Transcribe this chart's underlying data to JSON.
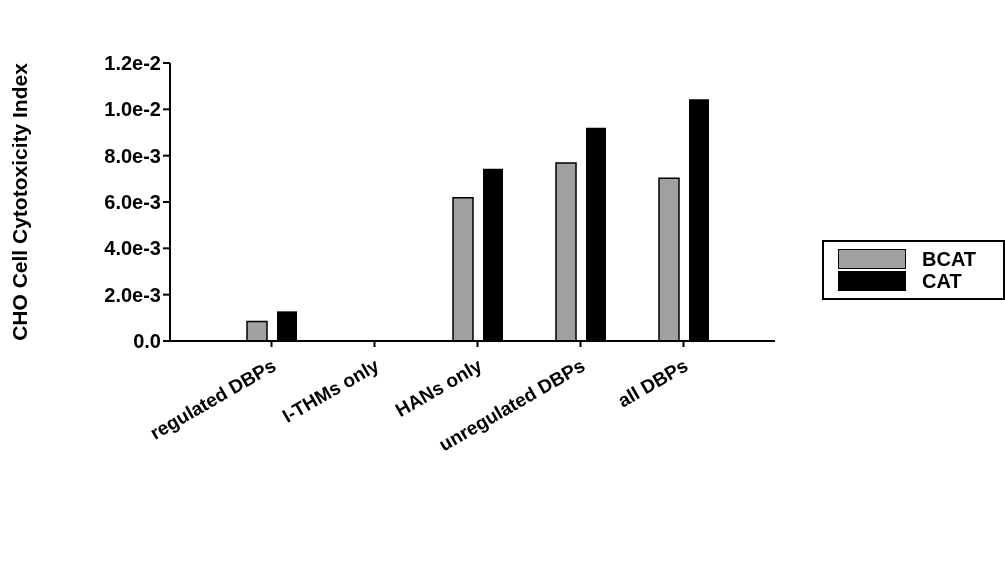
{
  "chart_data": {
    "type": "bar",
    "ylabel": "CHO Cell Cytotoxicity Index",
    "categories": [
      "regulated DBPs",
      "I-THMs only",
      "HANs only",
      "unregulated DBPs",
      "all DBPs"
    ],
    "series": [
      {
        "name": "BCAT",
        "color": "#a0a0a0",
        "values": [
          0.00084,
          null,
          0.00618,
          0.00768,
          0.00703
        ]
      },
      {
        "name": "CAT",
        "color": "#000000",
        "values": [
          0.00128,
          null,
          0.00743,
          0.00921,
          0.01044
        ]
      }
    ],
    "ylim": [
      0,
      0.012
    ],
    "yticks": [
      {
        "value": 0,
        "label": "0.0"
      },
      {
        "value": 0.002,
        "label": "2.0e-3"
      },
      {
        "value": 0.004,
        "label": "4.0e-3"
      },
      {
        "value": 0.006,
        "label": "6.0e-3"
      },
      {
        "value": 0.008,
        "label": "8.0e-3"
      },
      {
        "value": 0.01,
        "label": "1.0e-2"
      },
      {
        "value": 0.012,
        "label": "1.2e-2"
      }
    ],
    "grid": false,
    "legend": "right"
  }
}
